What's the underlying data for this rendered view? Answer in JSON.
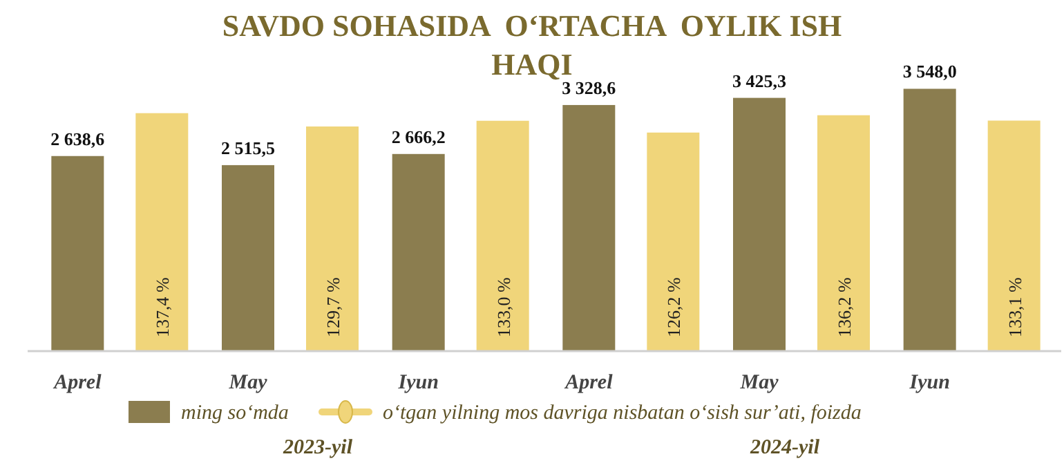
{
  "chart_data": {
    "type": "bar",
    "title": "SAVDO SOHASIDA  O‘RTACHA  OYLIK ISH HAQI",
    "categories": [
      "Aprel",
      "May",
      "Iyun",
      "Aprel",
      "May",
      "Iyun"
    ],
    "series": [
      {
        "name": "ming so‘mda",
        "color": "#8b7d4f",
        "values": [
          2638.6,
          2515.5,
          2666.2,
          3328.6,
          3425.3,
          3548.0
        ],
        "value_labels": [
          "2 638,6",
          "2 515,5",
          "2 666,2",
          "3 328,6",
          "3 425,3",
          "3 548,0"
        ]
      },
      {
        "name": "o‘tgan yilning mos davriga nisbatan o‘sish sur’ati, foizda",
        "color": "#f0d57a",
        "axis": "y2",
        "values": [
          137.4,
          129.7,
          133.0,
          126.2,
          136.2,
          133.1
        ],
        "value_labels": [
          "137,4 %",
          "129,7 %",
          "133,0 %",
          "126,2 %",
          "136,2 %",
          "133,1 %"
        ]
      }
    ],
    "tick_labels": "x",
    "legend": "bottom",
    "annotations": [
      "2023-yil",
      "2024-yil"
    ]
  }
}
